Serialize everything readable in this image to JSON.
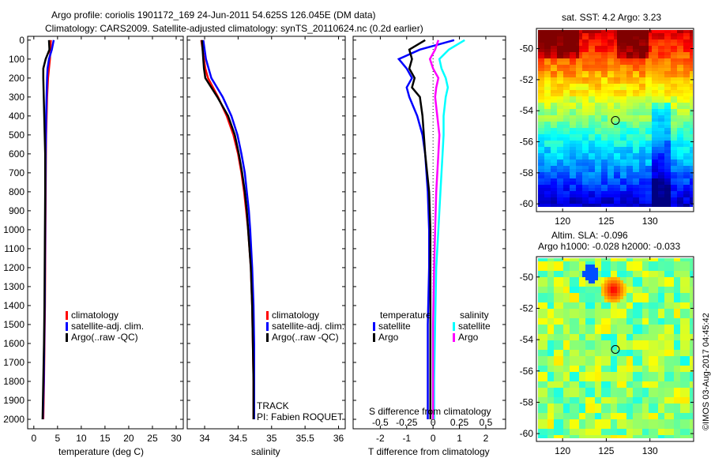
{
  "title": {
    "line1": "Argo profile: coriolis 1901172_169 24-Jun-2011 54.625S 126.045E (DM data)",
    "line2": "Climatology: CARS2009. Satellite-adjusted climatology: synTS_20110624.nc (0.2d earlier)"
  },
  "colors": {
    "climatology": "#ff0000",
    "satellite": "#0000ff",
    "argo": "#000000",
    "sat_salinity": "#00ffff",
    "argo_salinity": "#ff00ff"
  },
  "chart_data": [
    {
      "type": "line",
      "id": "temperature",
      "xlabel": "temperature (deg C)",
      "ylabel": "",
      "xlim": [
        -1.3,
        31.5
      ],
      "ylim": [
        2050,
        -20
      ],
      "xticks": [
        0,
        5,
        10,
        15,
        20,
        25,
        30
      ],
      "yticks": [
        0,
        100,
        200,
        300,
        400,
        500,
        600,
        700,
        800,
        900,
        1000,
        1100,
        1200,
        1300,
        1400,
        1500,
        1600,
        1700,
        1800,
        1900,
        2000
      ],
      "depth": [
        0,
        50,
        100,
        150,
        200,
        300,
        400,
        500,
        600,
        800,
        1000,
        1200,
        1400,
        1600,
        1800,
        2000
      ],
      "series": [
        {
          "name": "climatology",
          "values": [
            3.6,
            3.5,
            3.4,
            3.2,
            3.0,
            2.8,
            2.7,
            2.6,
            2.55,
            2.5,
            2.45,
            2.4,
            2.35,
            2.25,
            2.15,
            2.0
          ]
        },
        {
          "name": "satellite-adj. clim.",
          "values": [
            4.2,
            3.8,
            3.2,
            2.9,
            2.8,
            2.7,
            2.6,
            2.55,
            2.5,
            2.45,
            2.4,
            2.35,
            2.3,
            2.2,
            2.1,
            1.9
          ]
        },
        {
          "name": "Argo(..raw -QC)",
          "values": [
            3.2,
            3.3,
            2.5,
            2.0,
            2.0,
            2.1,
            2.2,
            2.3,
            2.4,
            2.4,
            2.35,
            2.3,
            2.25,
            2.15,
            2.0,
            1.85
          ]
        }
      ],
      "legend": [
        "climatology",
        "satellite-adj. clim.",
        "Argo(..raw -QC)"
      ],
      "legend_placement": "bottom-center"
    },
    {
      "type": "line",
      "id": "salinity",
      "xlabel": "salinity",
      "xlim": [
        33.74,
        36.1
      ],
      "ylim": [
        2050,
        -20
      ],
      "xticks": [
        34,
        34.5,
        35,
        35.5,
        36
      ],
      "depth": [
        0,
        50,
        100,
        150,
        200,
        300,
        400,
        500,
        600,
        700,
        800,
        900,
        1000,
        1200,
        1400,
        1600,
        1800,
        2000
      ],
      "series": [
        {
          "name": "climatology",
          "values": [
            33.95,
            33.97,
            33.99,
            34.01,
            34.05,
            34.2,
            34.33,
            34.43,
            34.5,
            34.55,
            34.59,
            34.62,
            34.65,
            34.69,
            34.71,
            34.72,
            34.73,
            34.73
          ]
        },
        {
          "name": "satellite-adj. clim.",
          "values": [
            33.98,
            34.0,
            34.02,
            34.06,
            34.1,
            34.27,
            34.4,
            34.49,
            34.55,
            34.6,
            34.63,
            34.66,
            34.68,
            34.71,
            34.73,
            34.74,
            34.74,
            34.74
          ]
        },
        {
          "name": "Argo(..raw -QC)",
          "values": [
            33.96,
            33.97,
            33.98,
            33.99,
            34.01,
            34.19,
            34.35,
            34.45,
            34.51,
            34.56,
            34.6,
            34.63,
            34.65,
            34.69,
            34.71,
            34.72,
            34.73,
            34.73
          ]
        }
      ],
      "legend": [
        "climatology",
        "satellite-adj. clim.",
        "Argo(..raw -QC)"
      ],
      "annotations": [
        "TRACK",
        "PI: Fabien ROQUET"
      ]
    },
    {
      "type": "line",
      "id": "differences",
      "xlabel": "T difference from climatology",
      "xlabel2": "S difference from climatology",
      "xlim": [
        -3.03,
        2.75
      ],
      "ylim": [
        2050,
        -20
      ],
      "xticks": [
        -2,
        -1,
        0,
        1,
        2
      ],
      "xticks2": [
        "-0.5",
        "-0.25",
        "0",
        "0.25",
        "0.5"
      ],
      "depth": [
        0,
        50,
        100,
        150,
        200,
        250,
        300,
        400,
        500,
        600,
        800,
        1000,
        1200,
        1500,
        1800,
        2000
      ],
      "series": [
        {
          "name": "temperature satellite",
          "values": [
            0.8,
            -0.5,
            -1.3,
            -1.0,
            -0.8,
            -1.0,
            -0.9,
            -0.6,
            -0.4,
            -0.3,
            -0.2,
            -0.15,
            -0.15,
            -0.2,
            -0.2,
            -0.2
          ]
        },
        {
          "name": "temperature Argo",
          "values": [
            -0.3,
            -0.9,
            -0.8,
            -0.9,
            -0.7,
            -0.8,
            -0.5,
            -0.4,
            -0.35,
            -0.3,
            -0.15,
            -0.1,
            -0.1,
            -0.1,
            -0.1,
            -0.1
          ]
        },
        {
          "name": "salinity satellite",
          "values": [
            0.3,
            0.15,
            0.06,
            0.08,
            0.12,
            0.14,
            0.12,
            0.1,
            0.1,
            0.09,
            0.07,
            0.05,
            0.03,
            0.02,
            0.01,
            0.01
          ]
        },
        {
          "name": "salinity Argo",
          "values": [
            0.05,
            0.02,
            -0.03,
            0.0,
            0.05,
            0.03,
            0.02,
            0.04,
            0.06,
            0.05,
            0.03,
            0.02,
            0.01,
            0.0,
            0.0,
            0.0
          ]
        }
      ],
      "legend_headers": [
        "temperature",
        "salinity"
      ],
      "legend": [
        "satellite",
        "Argo",
        "satellite",
        "Argo"
      ]
    },
    {
      "type": "heatmap",
      "id": "sst_map",
      "title": "sat. SST: 4.2 Argo: 3.23",
      "xticks": [
        "120",
        "125",
        "130"
      ],
      "yticks": [
        "-50",
        "-52",
        "-54",
        "-56",
        "-58",
        "-60"
      ],
      "xlim": [
        117,
        135
      ],
      "ylim": [
        -60.5,
        -48.7
      ],
      "argo_position": [
        126.045,
        -54.625
      ]
    },
    {
      "type": "heatmap",
      "id": "sla_map",
      "title": "Altim. SLA: -0.096",
      "subtitle": "Argo h1000: -0.028 h2000: -0.033",
      "xticks": [
        "120",
        "125",
        "130"
      ],
      "yticks": [
        "-50",
        "-52",
        "-54",
        "-56",
        "-58",
        "-60"
      ],
      "xlim": [
        117,
        135
      ],
      "ylim": [
        -60.5,
        -48.7
      ],
      "argo_position": [
        126.045,
        -54.625
      ]
    }
  ],
  "watermark": "©IMOS 03-Aug-2017 04:45:42"
}
